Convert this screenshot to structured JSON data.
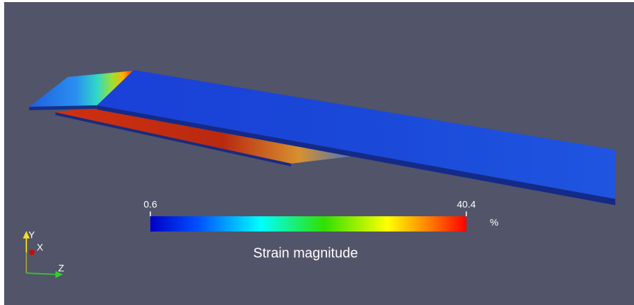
{
  "colorbar": {
    "title": "Strain magnitude",
    "min": 0.6,
    "max": 40.4,
    "unit": "%"
  },
  "axes": {
    "y": "Y",
    "x": "X",
    "z": "Z"
  }
}
